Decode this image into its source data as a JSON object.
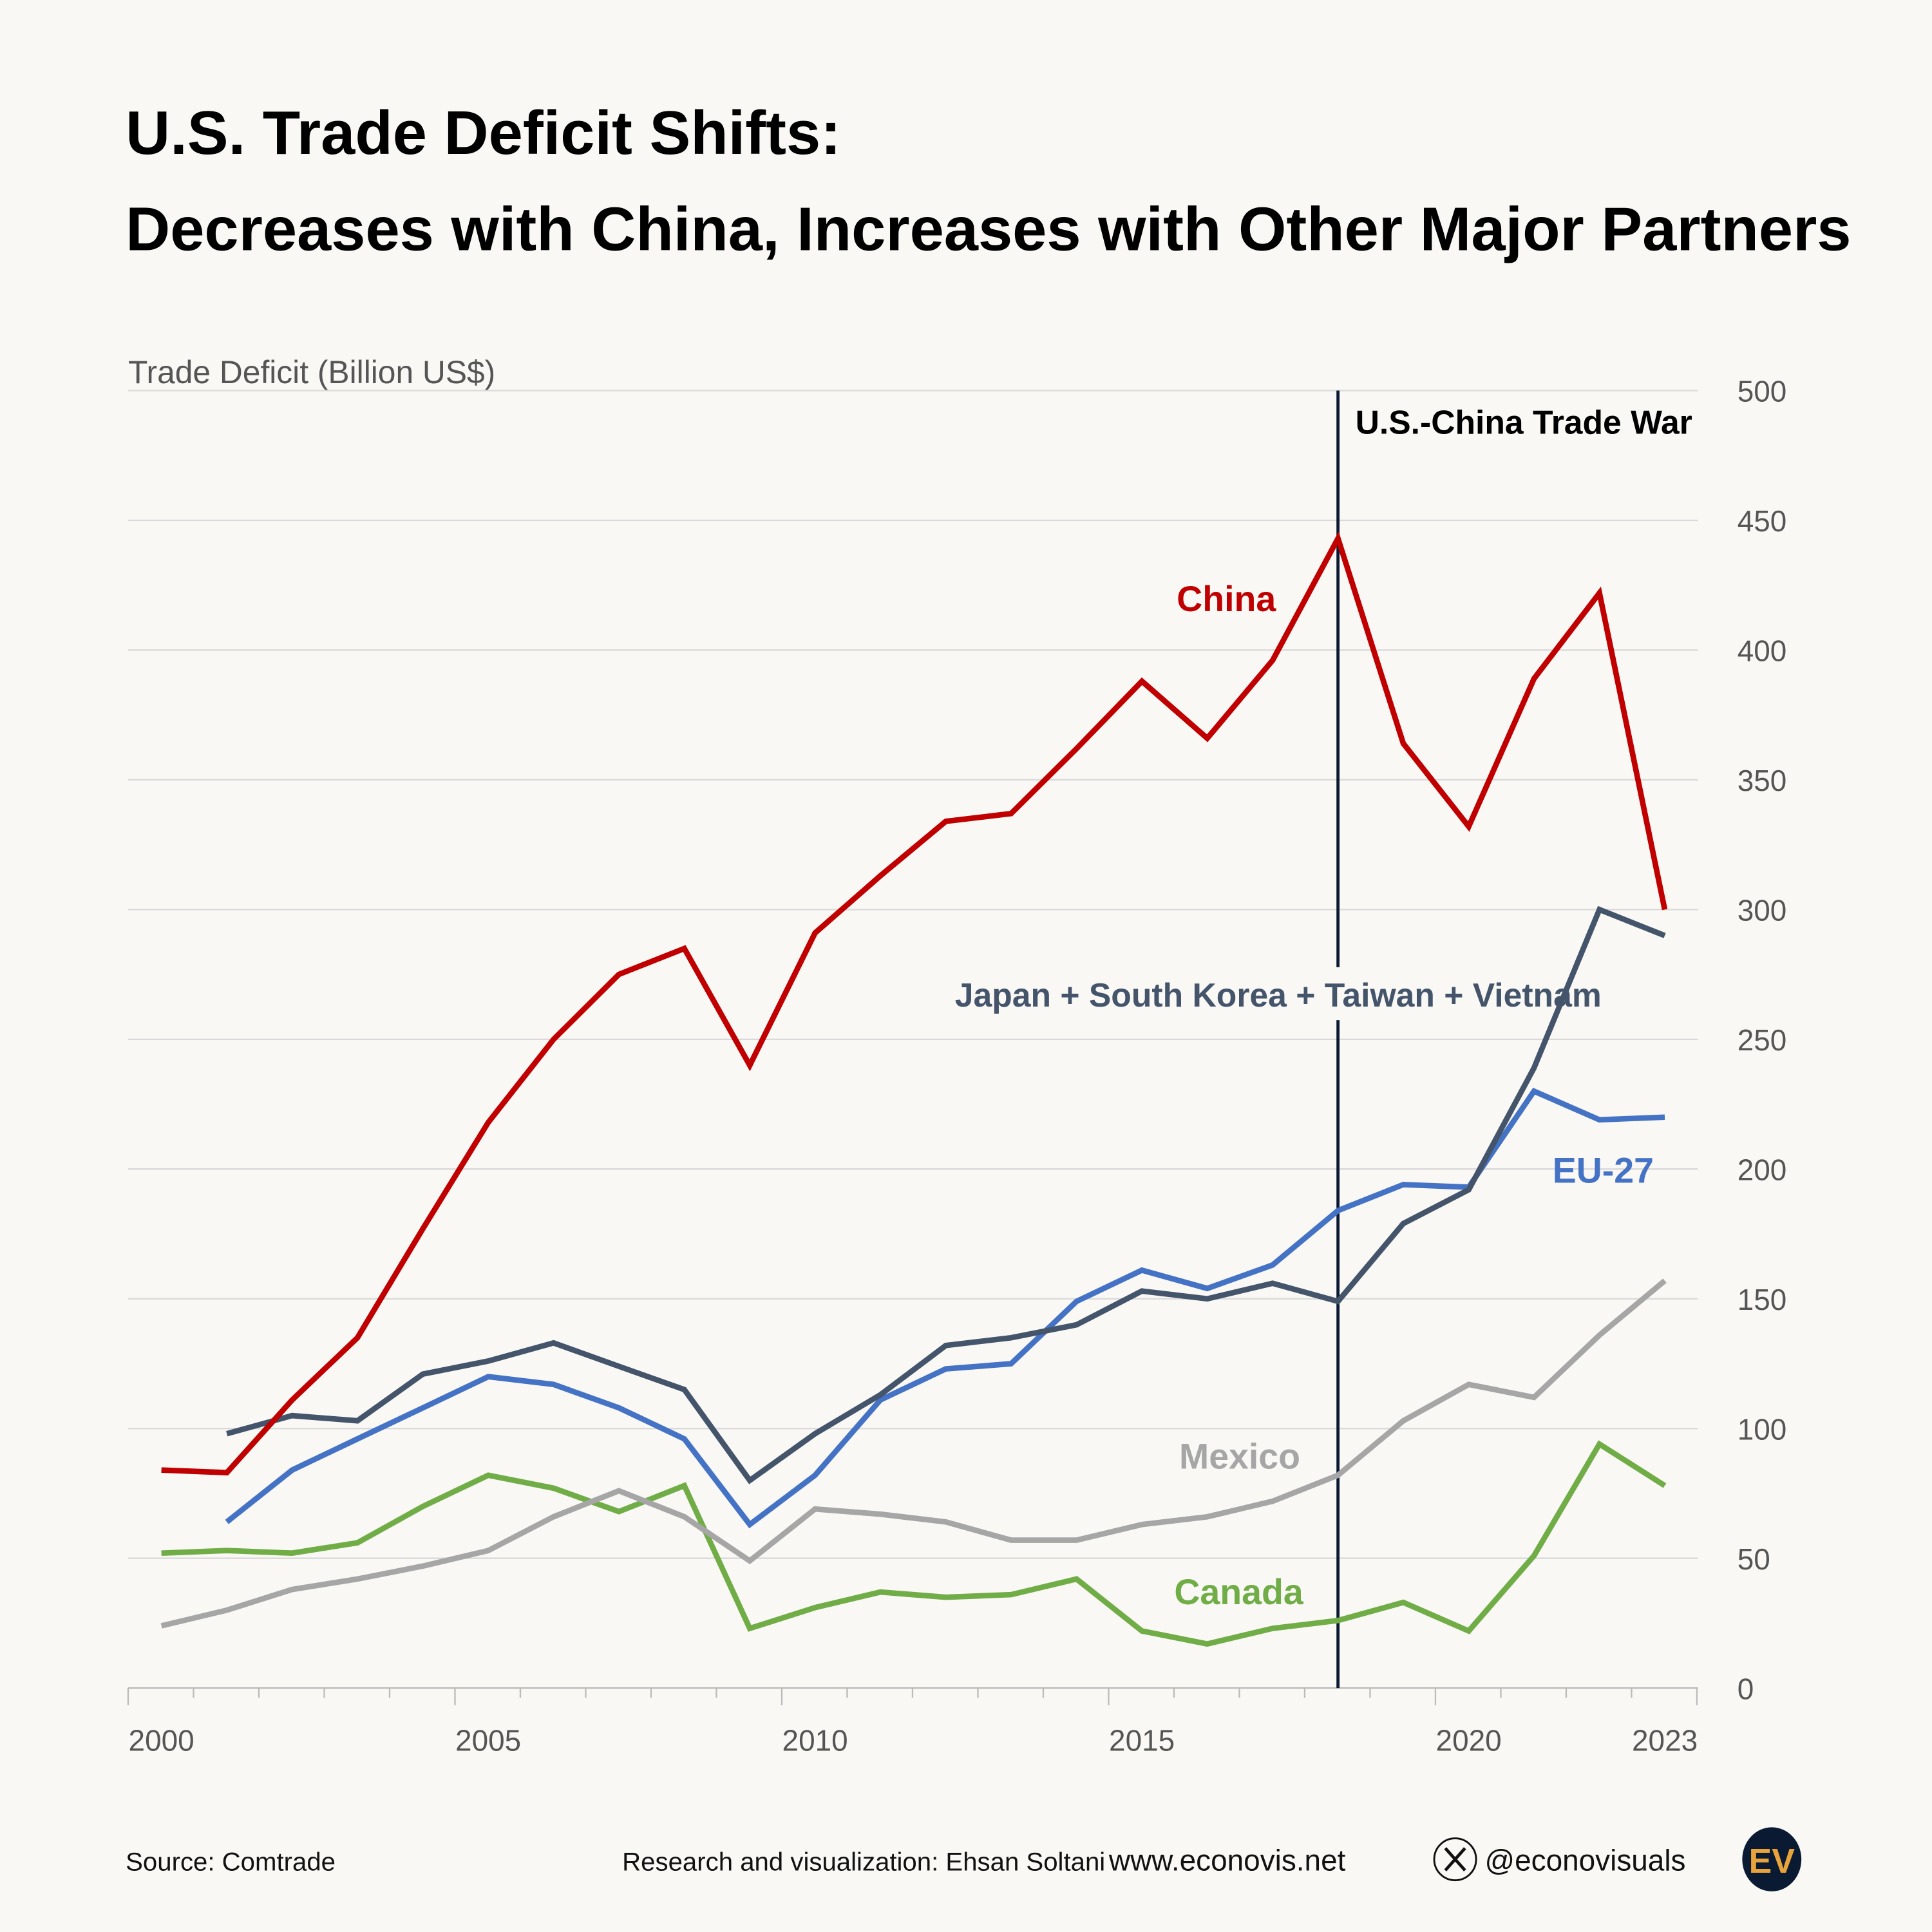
{
  "title_line1": "U.S. Trade Deficit Shifts:",
  "title_line2": "Decreases with China, Increases with Other Major Partners",
  "footer": {
    "source": "Source: Comtrade",
    "credit": "Research and visualization: Ehsan Soltani",
    "website": "www.econovis.net",
    "handle": "@econovisuals",
    "logo_text": "EV",
    "social_icon": "x-logo-icon"
  },
  "chart_data": {
    "type": "line",
    "ylabel": "Trade Deficit (Billion US$)",
    "xlabel": "",
    "ylim": [
      0,
      500
    ],
    "yticks": [
      0,
      50,
      100,
      150,
      200,
      250,
      300,
      350,
      400,
      450,
      500
    ],
    "xticks": [
      2000,
      2005,
      2010,
      2015,
      2020,
      2023
    ],
    "xlim": [
      2000,
      2023
    ],
    "grid": true,
    "annotation": {
      "x": 2018,
      "label": "U.S.-China Trade War"
    },
    "x": [
      2000,
      2001,
      2002,
      2003,
      2004,
      2005,
      2006,
      2007,
      2008,
      2009,
      2010,
      2011,
      2012,
      2013,
      2014,
      2015,
      2016,
      2017,
      2018,
      2019,
      2020,
      2021,
      2022,
      2023
    ],
    "series": [
      {
        "name": "China",
        "color": "#c00000",
        "values": [
          84,
          83,
          111,
          135,
          177,
          218,
          250,
          275,
          285,
          240,
          291,
          313,
          334,
          337,
          362,
          388,
          366,
          396,
          443,
          364,
          332,
          389,
          422,
          300
        ]
      },
      {
        "name": "Japan + South Korea + Taiwan + Vietnam",
        "color": "#44546a",
        "values": [
          null,
          98,
          105,
          103,
          121,
          126,
          133,
          124,
          115,
          80,
          98,
          113,
          132,
          135,
          140,
          153,
          150,
          156,
          149,
          179,
          192,
          239,
          300,
          290
        ]
      },
      {
        "name": "EU-27",
        "color": "#4472c4",
        "values": [
          null,
          64,
          84,
          96,
          108,
          120,
          117,
          108,
          96,
          63,
          82,
          111,
          123,
          125,
          149,
          161,
          154,
          163,
          184,
          194,
          193,
          230,
          219,
          220
        ]
      },
      {
        "name": "Mexico",
        "color": "#a6a6a6",
        "values": [
          24,
          30,
          38,
          42,
          47,
          53,
          66,
          76,
          66,
          49,
          69,
          67,
          64,
          57,
          57,
          63,
          66,
          72,
          82,
          103,
          117,
          112,
          136,
          157
        ]
      },
      {
        "name": "Canada",
        "color": "#70ad47",
        "values": [
          52,
          53,
          52,
          56,
          70,
          82,
          77,
          68,
          78,
          23,
          31,
          37,
          35,
          36,
          42,
          22,
          17,
          23,
          26,
          33,
          22,
          51,
          94,
          78
        ]
      }
    ]
  }
}
